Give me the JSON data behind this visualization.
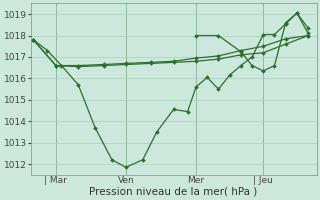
{
  "bg_color": "#cce8dc",
  "line_color": "#2d6e2d",
  "grid_color": "#aacfbe",
  "vline_color": "#5a8a6a",
  "title": "Pression niveau de la mer( hPa )",
  "tick_fontsize": 6.5,
  "xlabel_fontsize": 7.5,
  "ylim": [
    1011.5,
    1019.5
  ],
  "yticks": [
    1012,
    1013,
    1014,
    1015,
    1016,
    1017,
    1018,
    1019
  ],
  "xtick_labels": [
    "| Mar",
    "Ven",
    "Mer",
    "| Jeu"
  ],
  "xtick_positions": [
    0.08,
    0.33,
    0.58,
    0.82
  ],
  "series_volatile_x": [
    0.0,
    0.05,
    0.1,
    0.16,
    0.22,
    0.28,
    0.33,
    0.39,
    0.44,
    0.5,
    0.55,
    0.58,
    0.62,
    0.66,
    0.7,
    0.74,
    0.78,
    0.82,
    0.86,
    0.9,
    0.94,
    0.98
  ],
  "series_volatile_y": [
    1017.8,
    1017.3,
    1016.6,
    1015.7,
    1013.7,
    1012.2,
    1011.85,
    1012.2,
    1013.5,
    1014.55,
    1014.45,
    1015.6,
    1016.05,
    1015.5,
    1016.15,
    1016.6,
    1017.0,
    1018.05,
    1018.05,
    1018.55,
    1019.05,
    1018.1
  ],
  "series_flat1_x": [
    0.0,
    0.08,
    0.16,
    0.25,
    0.33,
    0.42,
    0.5,
    0.58,
    0.66,
    0.74,
    0.82,
    0.9,
    0.98
  ],
  "series_flat1_y": [
    1017.8,
    1016.6,
    1016.55,
    1016.6,
    1016.65,
    1016.7,
    1016.75,
    1016.8,
    1016.9,
    1017.1,
    1017.2,
    1017.6,
    1018.0
  ],
  "series_flat2_x": [
    0.0,
    0.08,
    0.16,
    0.25,
    0.33,
    0.42,
    0.5,
    0.58,
    0.66,
    0.74,
    0.82,
    0.9,
    0.98
  ],
  "series_flat2_y": [
    1017.8,
    1016.6,
    1016.6,
    1016.65,
    1016.7,
    1016.75,
    1016.8,
    1016.95,
    1017.05,
    1017.3,
    1017.5,
    1017.85,
    1018.0
  ],
  "series_right_x": [
    0.58,
    0.66,
    0.74,
    0.78,
    0.82,
    0.86,
    0.9,
    0.94,
    0.98
  ],
  "series_right_y": [
    1018.0,
    1018.0,
    1017.25,
    1016.6,
    1016.35,
    1016.6,
    1018.6,
    1019.05,
    1018.35
  ],
  "vline_positions": [
    0.08,
    0.33,
    0.58,
    0.82
  ],
  "xlim": [
    -0.01,
    1.01
  ]
}
